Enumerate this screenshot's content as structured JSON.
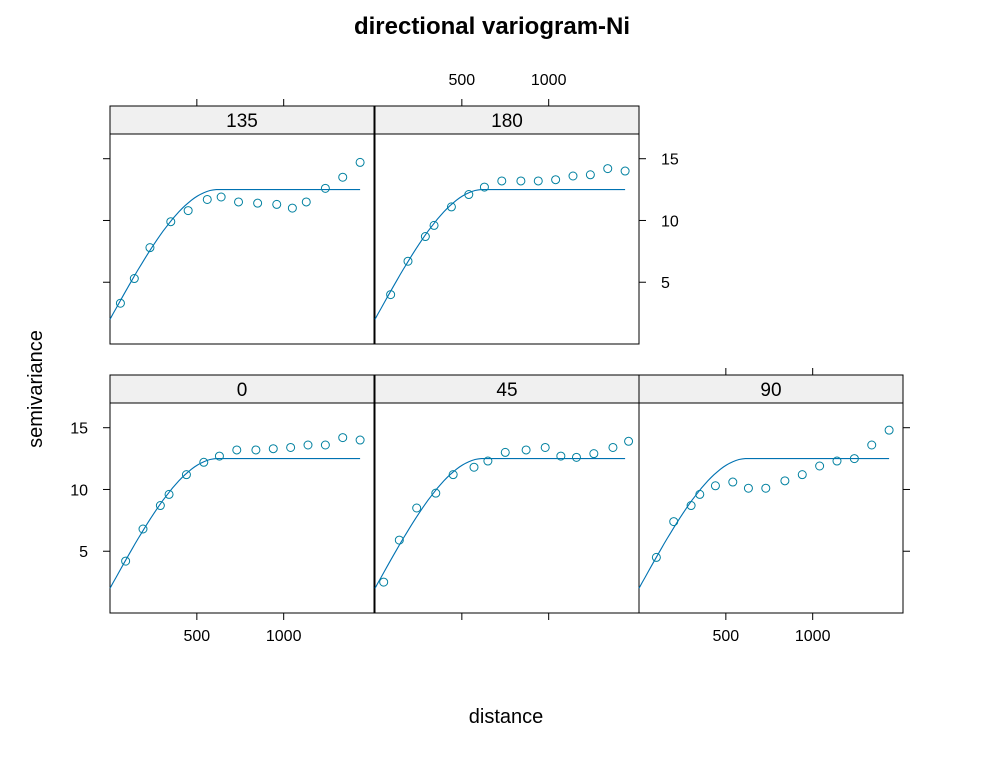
{
  "chart_data": {
    "type": "scatter",
    "title": "directional variogram-Ni",
    "xlabel": "distance",
    "ylabel": "semivariance",
    "xticks": [
      500,
      1000
    ],
    "yticks": [
      5,
      10,
      15
    ],
    "xlim": [
      0,
      1520
    ],
    "ylim": [
      0,
      17
    ],
    "grid": false,
    "colors": {
      "points": "#0080a0",
      "fit": "#0072b2",
      "strip": "#f0f0f0"
    },
    "model": {
      "nugget": 2.0,
      "sill": 12.5,
      "range": 620
    },
    "panels": [
      {
        "label": "0",
        "points": [
          [
            90,
            4.2
          ],
          [
            190,
            6.8
          ],
          [
            290,
            8.7
          ],
          [
            340,
            9.6
          ],
          [
            440,
            11.2
          ],
          [
            540,
            12.2
          ],
          [
            630,
            12.7
          ],
          [
            730,
            13.2
          ],
          [
            840,
            13.2
          ],
          [
            940,
            13.3
          ],
          [
            1040,
            13.4
          ],
          [
            1140,
            13.6
          ],
          [
            1240,
            13.6
          ],
          [
            1340,
            14.2
          ],
          [
            1440,
            14.0
          ]
        ]
      },
      {
        "label": "45",
        "points": [
          [
            50,
            2.5
          ],
          [
            140,
            5.9
          ],
          [
            240,
            8.5
          ],
          [
            350,
            9.7
          ],
          [
            450,
            11.2
          ],
          [
            570,
            11.8
          ],
          [
            650,
            12.3
          ],
          [
            750,
            13.0
          ],
          [
            870,
            13.2
          ],
          [
            980,
            13.4
          ],
          [
            1070,
            12.7
          ],
          [
            1160,
            12.6
          ],
          [
            1260,
            12.9
          ],
          [
            1370,
            13.4
          ],
          [
            1460,
            13.9
          ]
        ]
      },
      {
        "label": "90",
        "points": [
          [
            100,
            4.5
          ],
          [
            200,
            7.4
          ],
          [
            300,
            8.7
          ],
          [
            350,
            9.6
          ],
          [
            440,
            10.3
          ],
          [
            540,
            10.6
          ],
          [
            630,
            10.1
          ],
          [
            730,
            10.1
          ],
          [
            840,
            10.7
          ],
          [
            940,
            11.2
          ],
          [
            1040,
            11.9
          ],
          [
            1140,
            12.3
          ],
          [
            1240,
            12.5
          ],
          [
            1340,
            13.6
          ],
          [
            1440,
            14.8
          ]
        ]
      },
      {
        "label": "135",
        "points": [
          [
            60,
            3.3
          ],
          [
            140,
            5.3
          ],
          [
            230,
            7.8
          ],
          [
            350,
            9.9
          ],
          [
            450,
            10.8
          ],
          [
            560,
            11.7
          ],
          [
            640,
            11.9
          ],
          [
            740,
            11.5
          ],
          [
            850,
            11.4
          ],
          [
            960,
            11.3
          ],
          [
            1050,
            11.0
          ],
          [
            1130,
            11.5
          ],
          [
            1240,
            12.6
          ],
          [
            1340,
            13.5
          ],
          [
            1440,
            14.7
          ]
        ]
      },
      {
        "label": "180",
        "points": [
          [
            90,
            4.0
          ],
          [
            190,
            6.7
          ],
          [
            290,
            8.7
          ],
          [
            340,
            9.6
          ],
          [
            440,
            11.1
          ],
          [
            540,
            12.1
          ],
          [
            630,
            12.7
          ],
          [
            730,
            13.2
          ],
          [
            840,
            13.2
          ],
          [
            940,
            13.2
          ],
          [
            1040,
            13.3
          ],
          [
            1140,
            13.6
          ],
          [
            1240,
            13.7
          ],
          [
            1340,
            14.2
          ],
          [
            1440,
            14.0
          ]
        ]
      }
    ]
  }
}
